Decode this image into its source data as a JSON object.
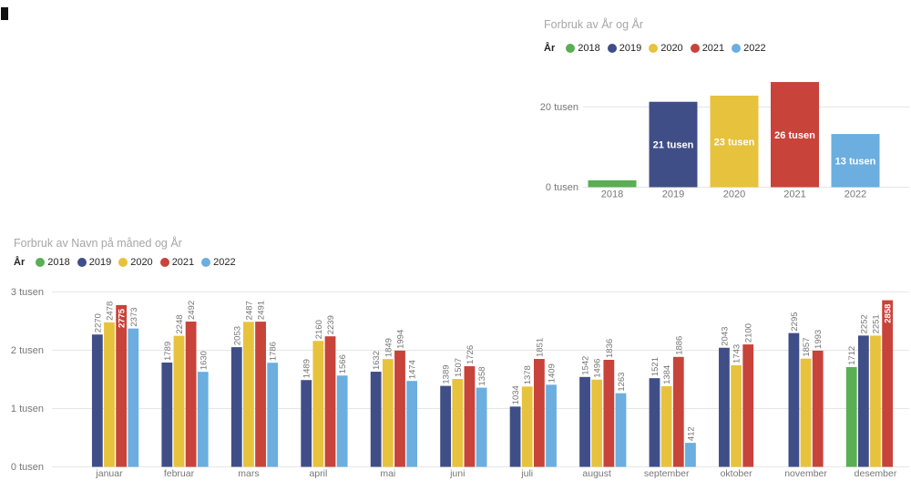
{
  "style": {
    "title_color": "#a6a6a6",
    "axis_color": "#777777",
    "grid_color": "#e6e6e6",
    "value_label_color": "#757575",
    "inside_label_color": "#ffffff",
    "legend_text_color": "#252423"
  },
  "chart_data": [
    {
      "id": "yearly",
      "type": "bar",
      "title": "Forbruk av År og År",
      "legend_title": "År",
      "legend_position": "top",
      "grid": true,
      "categories": [
        "2018",
        "2019",
        "2020",
        "2021",
        "2022"
      ],
      "values": [
        1712,
        21309,
        22838,
        26241,
        13271
      ],
      "bar_labels": [
        "",
        "21 tusen",
        "23 tusen",
        "26 tusen",
        "13 tusen"
      ],
      "colors": [
        "#5aae54",
        "#404e87",
        "#e7c23c",
        "#c8433a",
        "#6baedf"
      ],
      "xlabel": "",
      "ylabel": "",
      "ylim": [
        0,
        27500
      ],
      "y_ticks": [
        {
          "value": 0,
          "label": "0 tusen"
        },
        {
          "value": 20000,
          "label": "20 tusen"
        }
      ]
    },
    {
      "id": "monthly",
      "type": "bar",
      "title": "Forbruk av Navn på måned og År",
      "legend_title": "År",
      "legend_position": "top",
      "grid": true,
      "categories": [
        "januar",
        "februar",
        "mars",
        "april",
        "mai",
        "juni",
        "juli",
        "august",
        "september",
        "oktober",
        "november",
        "desember"
      ],
      "series": [
        {
          "name": "2018",
          "color": "#5aae54",
          "values": [
            null,
            null,
            null,
            null,
            null,
            null,
            null,
            null,
            null,
            null,
            null,
            1712
          ]
        },
        {
          "name": "2019",
          "color": "#404e87",
          "values": [
            2270,
            1789,
            2053,
            1489,
            1632,
            1389,
            1034,
            1542,
            1521,
            2043,
            2295,
            2252
          ]
        },
        {
          "name": "2020",
          "color": "#e7c23c",
          "values": [
            2478,
            2248,
            2487,
            2160,
            1849,
            1507,
            1378,
            1496,
            1384,
            1743,
            1857,
            2251
          ]
        },
        {
          "name": "2021",
          "color": "#c8433a",
          "values": [
            2775,
            2492,
            2491,
            2239,
            1994,
            1726,
            1851,
            1836,
            1886,
            2100,
            1993,
            2858
          ]
        },
        {
          "name": "2022",
          "color": "#6baedf",
          "values": [
            2373,
            1630,
            1786,
            1566,
            1474,
            1358,
            1409,
            1263,
            412,
            null,
            null,
            null
          ]
        }
      ],
      "xlabel": "",
      "ylabel": "",
      "ylim": [
        0,
        3211
      ],
      "y_ticks": [
        {
          "value": 0,
          "label": "0 tusen"
        },
        {
          "value": 1000,
          "label": "1 tusen"
        },
        {
          "value": 2000,
          "label": "2 tusen"
        },
        {
          "value": 3000,
          "label": "3 tusen"
        }
      ]
    }
  ]
}
